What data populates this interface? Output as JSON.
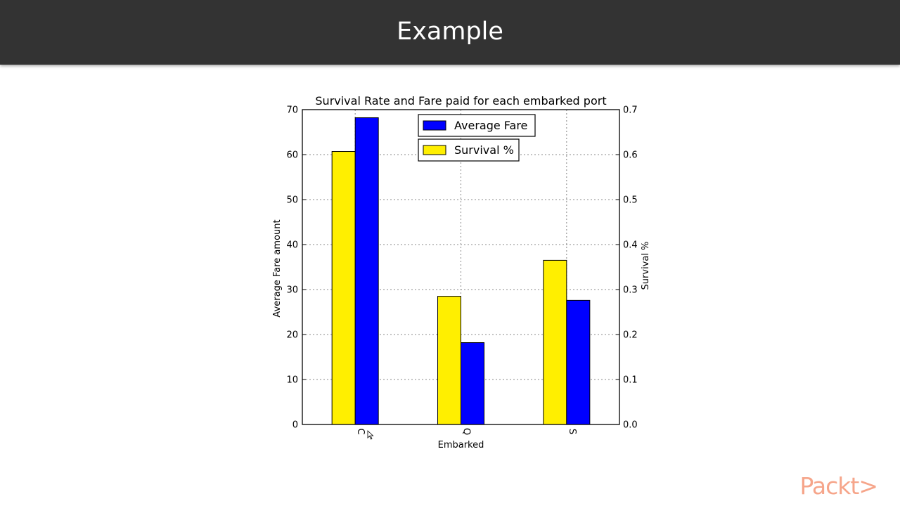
{
  "slide": {
    "title": "Example"
  },
  "brand": {
    "logo_text": "Packt>"
  },
  "colors": {
    "header_bg": "#333333",
    "fare_bar": "#0000ff",
    "survival_bar": "#ffef00",
    "logo": "#f6a58a"
  },
  "chart_data": {
    "type": "bar",
    "title": "Survival Rate and Fare paid for each embarked port",
    "xlabel": "Embarked",
    "ylabel_left": "Average Fare amount",
    "ylabel_right": "Survival %",
    "categories": [
      "C",
      "Q",
      "S"
    ],
    "ylim_left": [
      0,
      70
    ],
    "ylim_right": [
      0,
      0.7
    ],
    "yticks_left": [
      "0",
      "10",
      "20",
      "30",
      "40",
      "50",
      "60",
      "70"
    ],
    "yticks_right": [
      "0.0",
      "0.1",
      "0.2",
      "0.3",
      "0.4",
      "0.5",
      "0.6",
      "0.7"
    ],
    "grid": true,
    "series": [
      {
        "name": "Survival %",
        "axis": "right",
        "color": "#ffef00",
        "values": [
          0.607,
          0.285,
          0.365
        ]
      },
      {
        "name": "Average Fare",
        "axis": "left",
        "color": "#0000ff",
        "values": [
          68.2,
          18.2,
          27.6
        ]
      }
    ],
    "legend": [
      "Average Fare",
      "Survival %"
    ],
    "legend_placement": "top-center"
  }
}
